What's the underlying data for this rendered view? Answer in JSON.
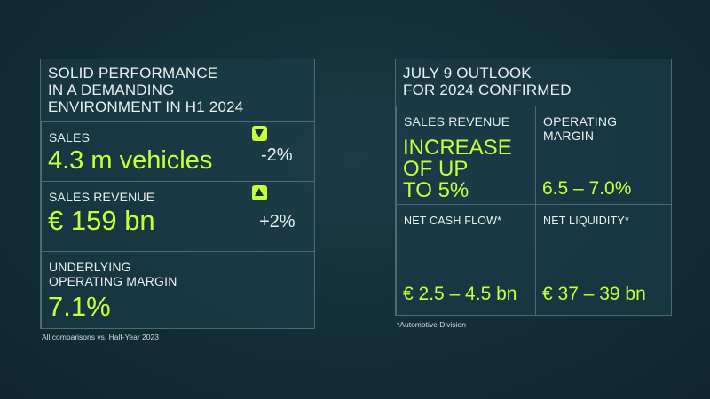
{
  "left": {
    "title_line1": "SOLID PERFORMANCE",
    "title_line2": "IN A DEMANDING",
    "title_line3": "ENVIRONMENT IN H1 2024",
    "sales": {
      "label": "SALES",
      "value": "4.3 m vehicles",
      "change": "-2%"
    },
    "sales_revenue": {
      "label": "SALES REVENUE",
      "value": "€ 159 bn",
      "change": "+2%"
    },
    "margin": {
      "label_line1": "UNDERLYING",
      "label_line2": "OPERATING MARGIN",
      "value": "7.1%"
    },
    "footnote": "All comparisons vs. Half-Year 2023"
  },
  "right": {
    "title_line1": "JULY 9 OUTLOOK",
    "title_line2": "FOR 2024 CONFIRMED",
    "sales_revenue": {
      "label": "SALES REVENUE",
      "value_line1": "INCREASE",
      "value_line2": "OF UP",
      "value_line3": "TO 5%"
    },
    "operating_margin": {
      "label_line1": "OPERATING",
      "label_line2": "MARGIN",
      "value": "6.5 – 7.0%"
    },
    "net_cash_flow": {
      "label": "NET CASH FLOW*",
      "value": "€ 2.5 – 4.5 bn"
    },
    "net_liquidity": {
      "label": "NET LIQUIDITY*",
      "value": "€ 37 – 39 bn"
    },
    "footnote": "*Automotive Division"
  },
  "colors": {
    "accent": "#c8ff3a",
    "background": "#143039",
    "border": "#4d6a73"
  }
}
